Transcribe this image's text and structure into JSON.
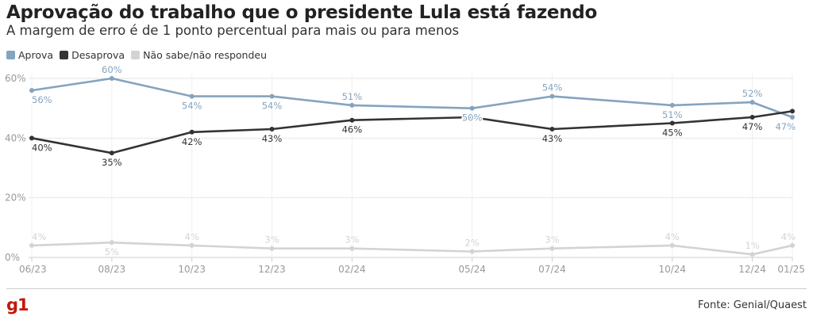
{
  "header": {
    "title": "Aprovação do trabalho que o presidente Lula está fazendo",
    "subtitle": "A margem de erro é de 1 ponto percentual para mais ou para menos"
  },
  "footer": {
    "brand": "g1",
    "source": "Fonte: Genial/Quaest"
  },
  "colors": {
    "aprova": "#84a4bf",
    "desaprova": "#333333",
    "nao_sabe": "#d3d3d3",
    "grid": "#e6e6e6",
    "axis_text": "#999999"
  },
  "chart_data": {
    "type": "line",
    "title": "Aprovação do trabalho que o presidente Lula está fazendo",
    "xlabel": "",
    "ylabel": "",
    "ylim": [
      0,
      60
    ],
    "yticks": [
      0,
      20,
      40,
      60
    ],
    "ytick_labels": [
      "0%",
      "20%",
      "40%",
      "60%"
    ],
    "grid": true,
    "legend": "top-left",
    "x": [
      0,
      2,
      4,
      6,
      8,
      11,
      13,
      16,
      18,
      19
    ],
    "x_labels": [
      "06/23",
      "08/23",
      "10/23",
      "12/23",
      "02/24",
      "05/24",
      "07/24",
      "10/24",
      "12/24",
      "01/25"
    ],
    "series": [
      {
        "name": "Aprova",
        "color": "#84a4bf",
        "values": [
          56,
          60,
          54,
          54,
          51,
          50,
          54,
          51,
          52,
          47
        ],
        "labels": [
          "56%",
          "60%",
          "54%",
          "54%",
          "51%",
          "50%",
          "54%",
          "51%",
          "52%",
          "47%"
        ]
      },
      {
        "name": "Desaprova",
        "color": "#333333",
        "values": [
          40,
          35,
          42,
          43,
          46,
          47,
          43,
          45,
          47,
          49
        ],
        "labels": [
          "40%",
          "35%",
          "42%",
          "43%",
          "46%",
          "",
          "43%",
          "45%",
          "47%",
          ""
        ]
      },
      {
        "name": "Não sabe/não respondeu",
        "color": "#d3d3d3",
        "values": [
          4,
          5,
          4,
          3,
          3,
          2,
          3,
          4,
          1,
          4
        ],
        "labels": [
          "4%",
          "5%",
          "4%",
          "3%",
          "3%",
          "2%",
          "3%",
          "4%",
          "1%",
          "4%"
        ]
      }
    ]
  }
}
